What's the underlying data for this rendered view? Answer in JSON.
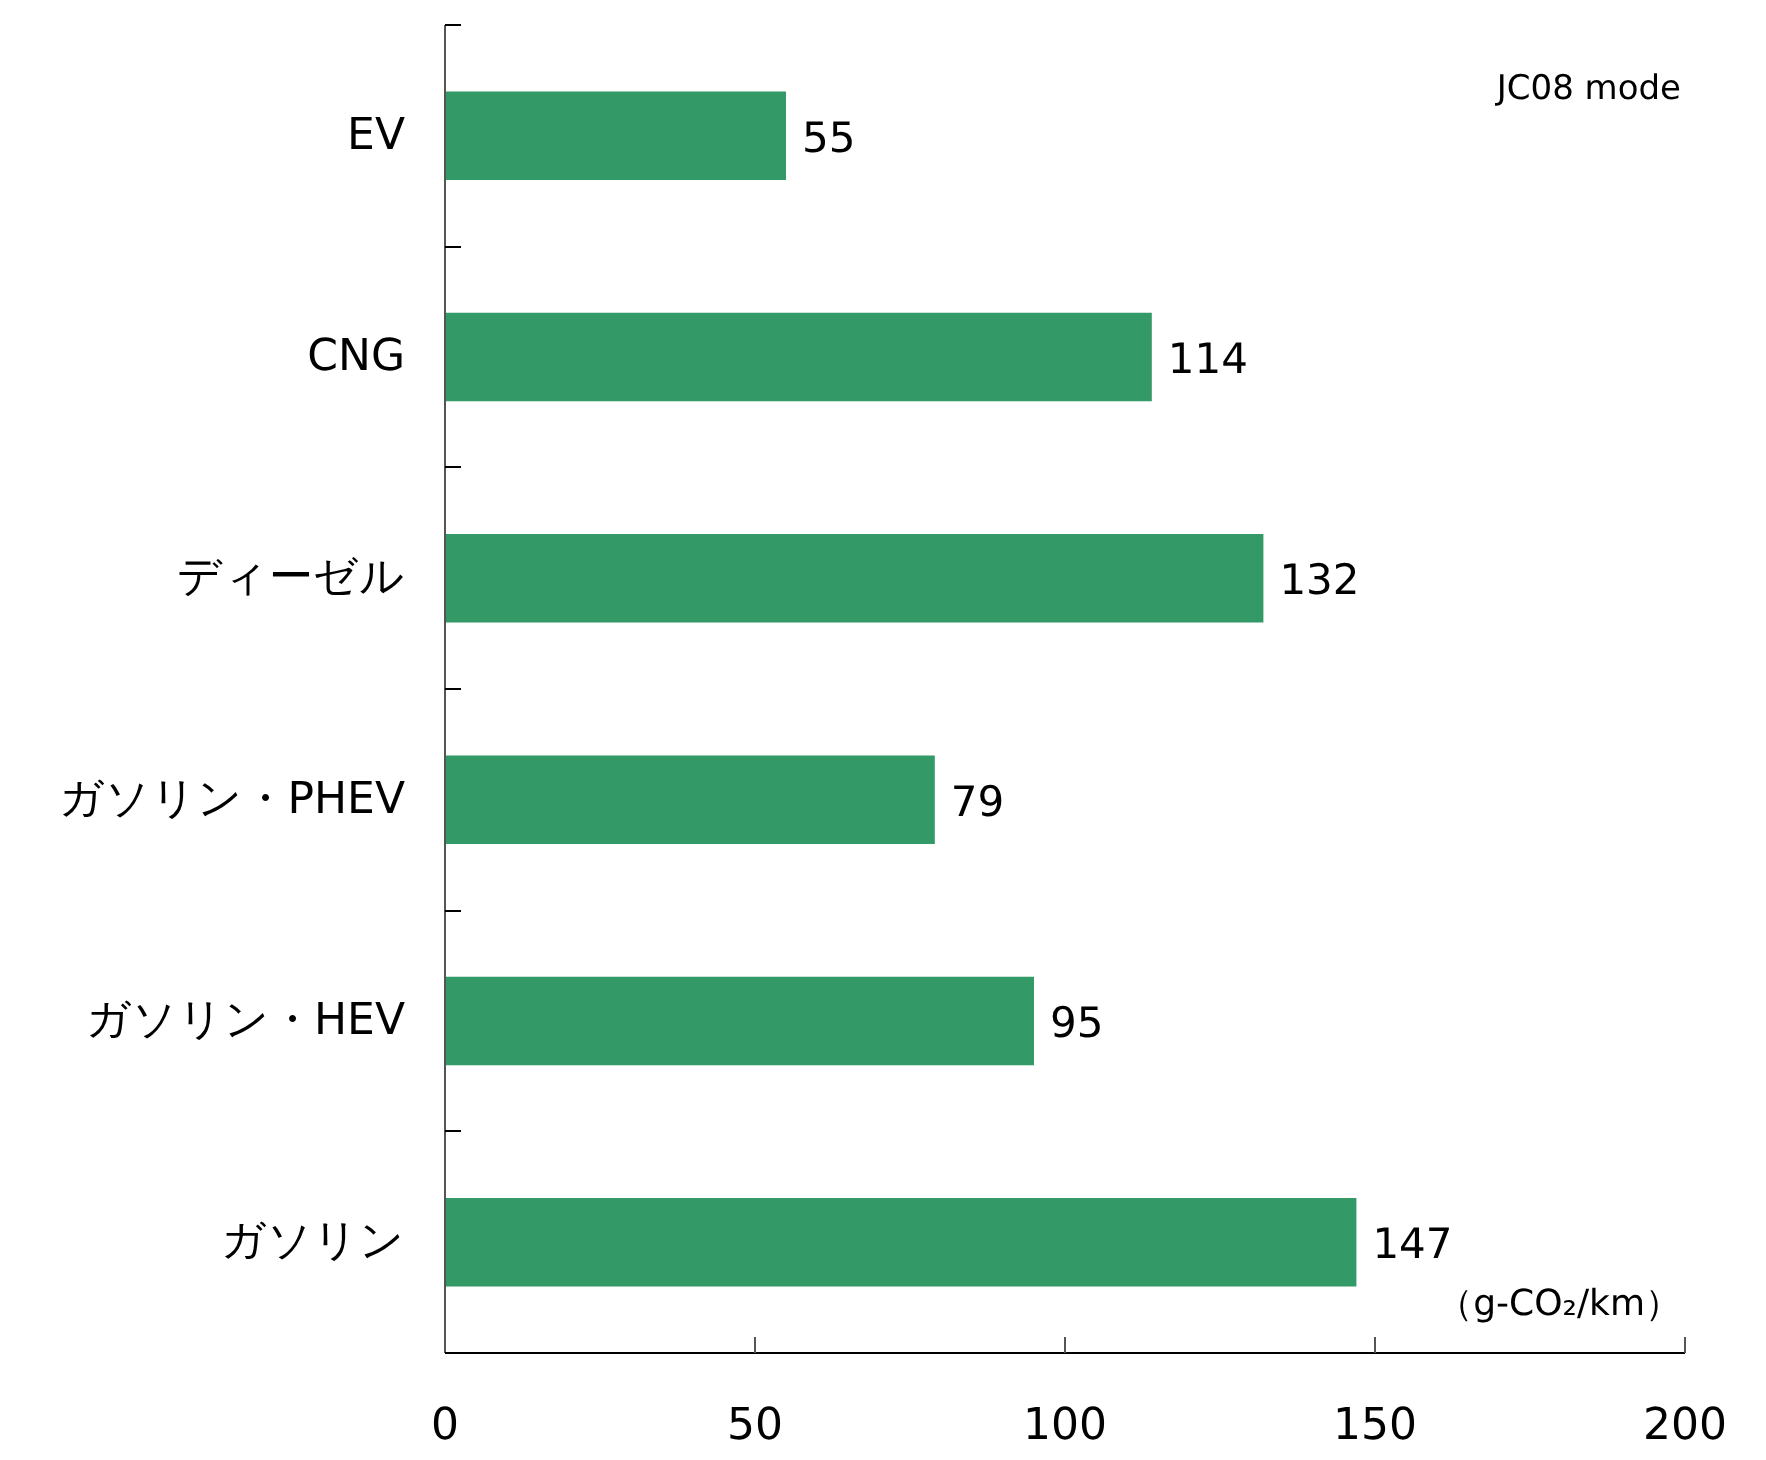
{
  "chart_data": {
    "type": "bar",
    "orientation": "horizontal",
    "categories": [
      "EV",
      "CNG",
      "ディーゼル",
      "ガソリン・PHEV",
      "ガソリン・HEV",
      "ガソリン"
    ],
    "values": [
      55,
      114,
      132,
      79,
      95,
      147
    ],
    "color": "#339966",
    "xlim": [
      0,
      200
    ],
    "xticks": [
      0,
      50,
      100,
      150,
      200
    ],
    "xlabel": "（g-CO₂/km）",
    "annotations": [
      "JC08 mode"
    ],
    "data_labels": true,
    "grid": false
  }
}
